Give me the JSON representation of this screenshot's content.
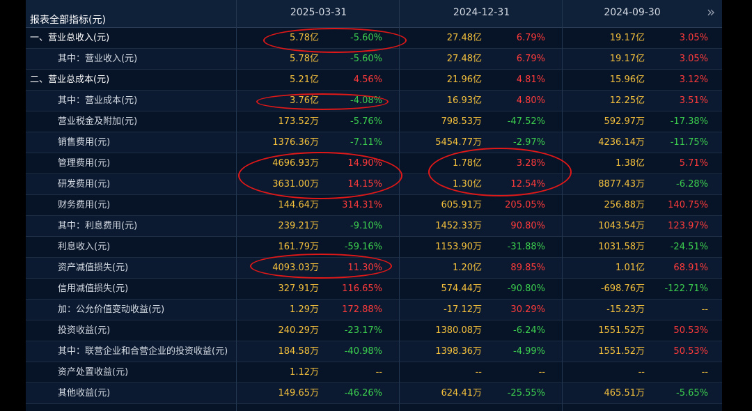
{
  "header": {
    "title": "报表全部指标(元)",
    "periods": [
      "2025-03-31",
      "2024-12-31",
      "2024-09-30"
    ],
    "more_icon": "double-chevron-right-icon"
  },
  "rows": [
    {
      "label": "一、营业总收入(元)",
      "level": "top",
      "cells": [
        [
          "5.78亿",
          "-5.60%"
        ],
        [
          "27.48亿",
          "6.79%"
        ],
        [
          "19.17亿",
          "3.05%"
        ]
      ]
    },
    {
      "label": "其中：营业收入(元)",
      "level": "sub",
      "cells": [
        [
          "5.78亿",
          "-5.60%"
        ],
        [
          "27.48亿",
          "6.79%"
        ],
        [
          "19.17亿",
          "3.05%"
        ]
      ]
    },
    {
      "label": "二、营业总成本(元)",
      "level": "top",
      "cells": [
        [
          "5.21亿",
          "4.56%"
        ],
        [
          "21.96亿",
          "4.81%"
        ],
        [
          "15.96亿",
          "3.12%"
        ]
      ]
    },
    {
      "label": "其中：营业成本(元)",
      "level": "sub",
      "cells": [
        [
          "3.76亿",
          "-4.08%"
        ],
        [
          "16.93亿",
          "4.80%"
        ],
        [
          "12.25亿",
          "3.51%"
        ]
      ]
    },
    {
      "label": "营业税金及附加(元)",
      "level": "sub",
      "cells": [
        [
          "173.52万",
          "-5.76%"
        ],
        [
          "798.53万",
          "-47.52%"
        ],
        [
          "592.97万",
          "-17.38%"
        ]
      ]
    },
    {
      "label": "销售费用(元)",
      "level": "sub",
      "cells": [
        [
          "1376.36万",
          "-7.11%"
        ],
        [
          "5454.77万",
          "-2.97%"
        ],
        [
          "4236.14万",
          "-11.75%"
        ]
      ]
    },
    {
      "label": "管理费用(元)",
      "level": "sub",
      "cells": [
        [
          "4696.93万",
          "14.90%"
        ],
        [
          "1.78亿",
          "3.28%"
        ],
        [
          "1.38亿",
          "5.71%"
        ]
      ]
    },
    {
      "label": "研发费用(元)",
      "level": "sub",
      "cells": [
        [
          "3631.00万",
          "14.15%"
        ],
        [
          "1.30亿",
          "12.54%"
        ],
        [
          "8877.43万",
          "-6.28%"
        ]
      ]
    },
    {
      "label": "财务费用(元)",
      "level": "sub",
      "cells": [
        [
          "144.64万",
          "314.31%"
        ],
        [
          "605.91万",
          "205.05%"
        ],
        [
          "256.88万",
          "140.75%"
        ]
      ]
    },
    {
      "label": "其中：利息费用(元)",
      "level": "sub",
      "cells": [
        [
          "239.21万",
          "-9.10%"
        ],
        [
          "1452.33万",
          "90.80%"
        ],
        [
          "1043.54万",
          "123.97%"
        ]
      ]
    },
    {
      "label": "利息收入(元)",
      "level": "sub",
      "cells": [
        [
          "161.79万",
          "-59.16%"
        ],
        [
          "1153.90万",
          "-31.88%"
        ],
        [
          "1031.58万",
          "-24.51%"
        ]
      ]
    },
    {
      "label": "资产减值损失(元)",
      "level": "sub",
      "cells": [
        [
          "4093.03万",
          "11.30%"
        ],
        [
          "1.20亿",
          "89.85%"
        ],
        [
          "1.01亿",
          "68.91%"
        ]
      ]
    },
    {
      "label": "信用减值损失(元)",
      "level": "sub",
      "cells": [
        [
          "327.91万",
          "116.65%"
        ],
        [
          "574.44万",
          "-90.80%"
        ],
        [
          "-698.76万",
          "-122.71%"
        ]
      ]
    },
    {
      "label": "加：公允价值变动收益(元)",
      "level": "sub",
      "cells": [
        [
          "1.29万",
          "172.88%"
        ],
        [
          "-17.12万",
          "30.29%"
        ],
        [
          "-15.23万",
          "--"
        ]
      ]
    },
    {
      "label": "投资收益(元)",
      "level": "sub",
      "cells": [
        [
          "240.29万",
          "-23.17%"
        ],
        [
          "1380.08万",
          "-6.24%"
        ],
        [
          "1551.52万",
          "50.53%"
        ]
      ]
    },
    {
      "label": "其中：联营企业和合营企业的投资收益(元)",
      "level": "sub",
      "cells": [
        [
          "184.58万",
          "-40.98%"
        ],
        [
          "1398.36万",
          "-4.99%"
        ],
        [
          "1551.52万",
          "50.53%"
        ]
      ]
    },
    {
      "label": "资产处置收益(元)",
      "level": "sub",
      "cells": [
        [
          "1.12万",
          "--"
        ],
        [
          "--",
          "--"
        ],
        [
          "--",
          "--"
        ]
      ]
    },
    {
      "label": "其他收益(元)",
      "level": "sub",
      "cells": [
        [
          "149.65万",
          "-46.26%"
        ],
        [
          "624.41万",
          "-25.55%"
        ],
        [
          "465.51万",
          "-5.65%"
        ]
      ]
    }
  ],
  "colors": {
    "positive": "#ff3b3b",
    "negative": "#3ccf4f",
    "value": "#f5c13d",
    "highlight": "#e01818"
  }
}
